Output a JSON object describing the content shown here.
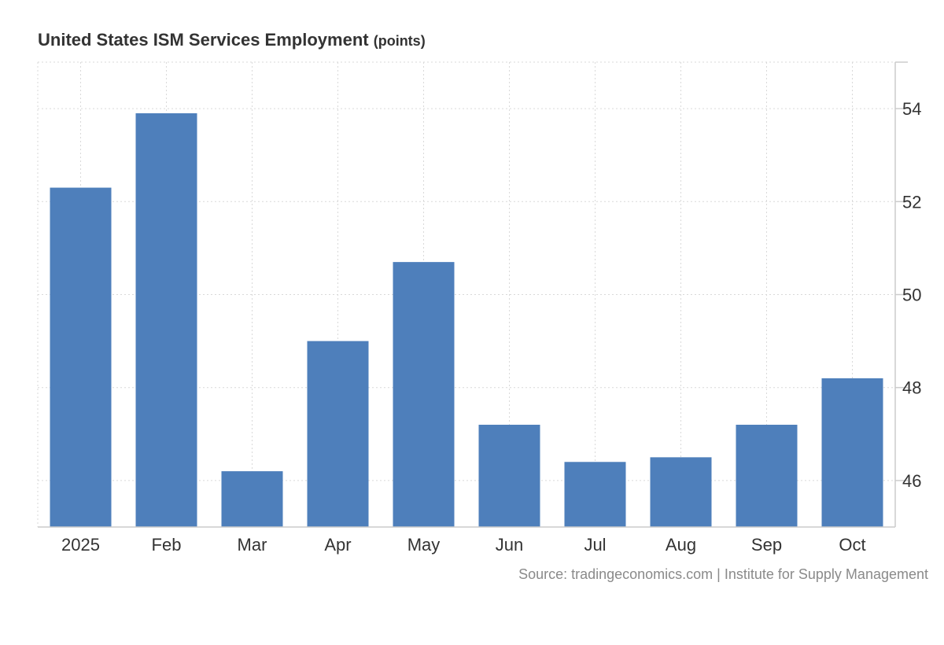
{
  "title": "United States ISM Services Employment",
  "unit_label": "(points)",
  "source": "Source: tradingeconomics.com | Institute for Supply Management",
  "colors": {
    "bar": "#4e7fbb",
    "grid": "#d9d9d9",
    "axis": "#cccccc",
    "text": "#333333",
    "source": "#8a8a8a"
  },
  "chart_data": {
    "type": "bar",
    "title": "United States ISM Services Employment",
    "categories": [
      "2025",
      "Feb",
      "Mar",
      "Apr",
      "May",
      "Jun",
      "Jul",
      "Aug",
      "Sep",
      "Oct"
    ],
    "values": [
      52.3,
      53.9,
      46.2,
      49.0,
      50.7,
      47.2,
      46.4,
      46.5,
      47.2,
      48.2
    ],
    "ylim": [
      45,
      55
    ],
    "yticks": [
      46,
      48,
      50,
      52,
      54
    ],
    "y_axis_side": "right",
    "grid": true,
    "xlabel": "",
    "ylabel": ""
  }
}
